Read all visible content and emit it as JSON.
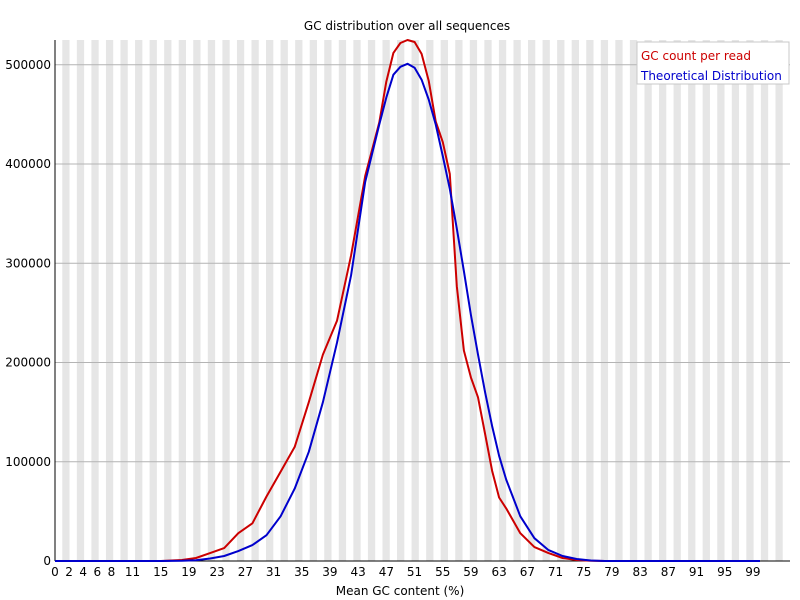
{
  "chart_data": {
    "type": "line",
    "title": "GC distribution over all sequences",
    "xlabel": "Mean GC content (%)",
    "ylabel": "",
    "xlim": [
      0,
      100
    ],
    "ylim": [
      0,
      525000
    ],
    "grid": true,
    "legend_position": "top-right",
    "x_tick_labels": [
      "0",
      "2",
      "4",
      "6",
      "8",
      "11",
      "15",
      "19",
      "23",
      "27",
      "31",
      "35",
      "39",
      "43",
      "47",
      "51",
      "55",
      "59",
      "63",
      "67",
      "71",
      "75",
      "79",
      "83",
      "87",
      "91",
      "95",
      "99"
    ],
    "y_tick_labels": [
      "0",
      "100000",
      "200000",
      "300000",
      "400000",
      "500000"
    ],
    "y_tick_values": [
      0,
      100000,
      200000,
      300000,
      400000,
      500000
    ],
    "series": [
      {
        "name": "GC count per read",
        "color": "#cc0000",
        "x": [
          0,
          5,
          10,
          15,
          18,
          20,
          22,
          24,
          26,
          28,
          30,
          32,
          34,
          36,
          38,
          40,
          42,
          44,
          46,
          47,
          48,
          49,
          50,
          51,
          52,
          53,
          54,
          55,
          56,
          57,
          58,
          59,
          60,
          61,
          62,
          63,
          64,
          66,
          68,
          70,
          72,
          74,
          76,
          78,
          80,
          85,
          90,
          95,
          100
        ],
        "y": [
          0,
          0,
          0,
          0,
          1000,
          3000,
          8000,
          13000,
          28000,
          38000,
          65000,
          90000,
          115000,
          160000,
          208000,
          242000,
          308000,
          388000,
          442000,
          483000,
          512000,
          522000,
          525000,
          523000,
          511000,
          484000,
          443000,
          422000,
          390000,
          277000,
          212000,
          185000,
          165000,
          128000,
          91000,
          64000,
          53000,
          28000,
          14000,
          8000,
          3000,
          1000,
          300,
          0,
          0,
          0,
          0,
          0,
          0
        ]
      },
      {
        "name": "Theoretical Distribution",
        "color": "#0000cc",
        "x": [
          0,
          5,
          10,
          15,
          18,
          20,
          22,
          24,
          26,
          28,
          30,
          32,
          34,
          36,
          38,
          40,
          42,
          44,
          46,
          47,
          48,
          49,
          50,
          51,
          52,
          53,
          54,
          55,
          56,
          57,
          58,
          59,
          60,
          61,
          62,
          63,
          64,
          66,
          68,
          70,
          72,
          74,
          76,
          78,
          80,
          85,
          90,
          95,
          100
        ],
        "y": [
          0,
          0,
          0,
          0,
          200,
          800,
          2500,
          5000,
          10000,
          16000,
          26000,
          45000,
          73000,
          110000,
          160000,
          220000,
          288000,
          382000,
          440000,
          467000,
          490000,
          498000,
          501000,
          497000,
          485000,
          465000,
          440000,
          408000,
          375000,
          335000,
          292000,
          248000,
          208000,
          170000,
          136000,
          106000,
          82000,
          45000,
          23000,
          11000,
          5000,
          2000,
          500,
          0,
          0,
          0,
          0,
          0,
          0
        ]
      }
    ]
  }
}
